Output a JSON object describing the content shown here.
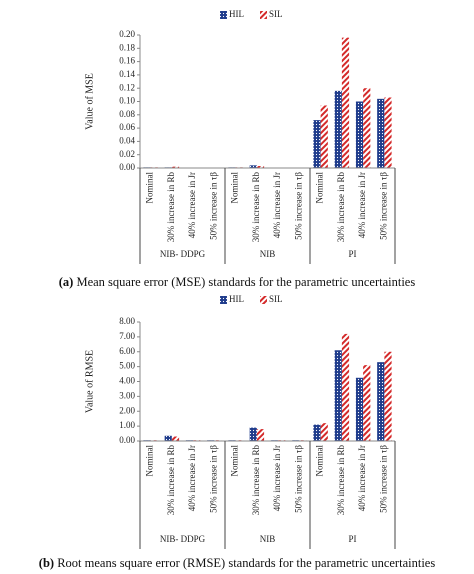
{
  "chart_data": [
    {
      "type": "bar",
      "caption_label": "(a)",
      "caption": "Mean square error (MSE) standards for the parametric uncertainties",
      "ylabel": "Value of MSE",
      "groups": [
        "NIB- DDPG",
        "NIB",
        "PI"
      ],
      "categories": [
        "Nominal",
        "30% increase in Rb",
        "40% increase in Jr",
        "50% increase in τβ",
        "Nominal",
        "30% increase in Rb",
        "40% increase in Jr",
        "50% increase in τβ",
        "Nominal",
        "30% increase in Rb",
        "40% increase in Jr",
        "50% increase in τβ"
      ],
      "series": [
        {
          "name": "HIL",
          "color": "#1f3c8c",
          "values": [
            0.001,
            0.001,
            0.0005,
            0.0005,
            0.001,
            0.004,
            0.0005,
            0.0005,
            0.072,
            0.116,
            0.1,
            0.104
          ]
        },
        {
          "name": "SIL",
          "color": "#d42a2a",
          "values": [
            0.001,
            0.002,
            0.0005,
            0.0005,
            0.001,
            0.003,
            0.0005,
            0.0005,
            0.094,
            0.196,
            0.12,
            0.106
          ]
        }
      ],
      "ylim": [
        0,
        0.2
      ],
      "yticks": [
        {
          "value": 0,
          "label": "0.00"
        },
        {
          "value": 0.02,
          "label": "0.02"
        },
        {
          "value": 0.04,
          "label": "0.04"
        },
        {
          "value": 0.06,
          "label": "0.06"
        },
        {
          "value": 0.08,
          "label": "0.08"
        },
        {
          "value": 0.1,
          "label": "0.10"
        },
        {
          "value": 0.12,
          "label": "0.12"
        },
        {
          "value": 0.14,
          "label": "0.14"
        },
        {
          "value": 0.16,
          "label": "0.16"
        },
        {
          "value": 0.18,
          "label": "0.18"
        },
        {
          "value": 0.2,
          "label": "0.20"
        }
      ]
    },
    {
      "type": "bar",
      "caption_label": "(b)",
      "caption": "Root means square error (RMSE) standards for the parametric uncertainties",
      "ylabel": "Value of RMSE",
      "groups": [
        "NIB- DDPG",
        "NIB",
        "PI"
      ],
      "categories": [
        "Nominal",
        "30% increase in Rb",
        "40% increase in Jr",
        "50% increase in τβ",
        "Nominal",
        "30% increase in Rb",
        "40% increase in Jr",
        "50% increase in τβ",
        "Nominal",
        "30% increase in Rb",
        "40% increase in Jr",
        "50% increase in τβ"
      ],
      "series": [
        {
          "name": "HIL",
          "color": "#1f3c8c",
          "values": [
            0.05,
            0.35,
            0.05,
            0.05,
            0.05,
            0.9,
            0.05,
            0.05,
            1.1,
            6.1,
            4.25,
            5.3
          ]
        },
        {
          "name": "SIL",
          "color": "#d42a2a",
          "values": [
            0.05,
            0.3,
            0.05,
            0.05,
            0.05,
            0.8,
            0.05,
            0.05,
            1.2,
            7.2,
            5.1,
            6.0
          ]
        }
      ],
      "ylim": [
        0,
        8
      ],
      "yticks": [
        {
          "value": 0,
          "label": "0.00"
        },
        {
          "value": 1,
          "label": "1.00"
        },
        {
          "value": 2,
          "label": "2.00"
        },
        {
          "value": 3,
          "label": "3.00"
        },
        {
          "value": 4,
          "label": "4.00"
        },
        {
          "value": 5,
          "label": "5.00"
        },
        {
          "value": 6,
          "label": "6.00"
        },
        {
          "value": 7,
          "label": "7.00"
        },
        {
          "value": 8,
          "label": "8.00"
        }
      ]
    }
  ]
}
